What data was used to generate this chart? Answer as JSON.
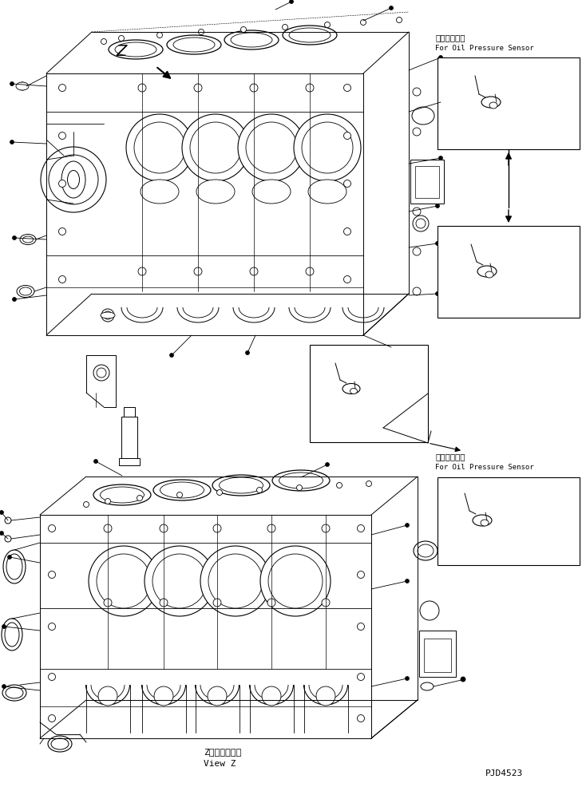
{
  "background_color": "#ffffff",
  "line_color": "#000000",
  "text_color": "#000000",
  "japanese_label1": "油圧センサ用",
  "english_label1": "For Oil Pressure Sensor",
  "japanese_label2": "油圧センサ用",
  "english_label2": "For Oil Pressure Sensor",
  "view_label_jp": "Z　視　　・・",
  "view_label_en": "View Z",
  "part_number": "PJD4523",
  "fig_width": 7.34,
  "fig_height": 9.86,
  "dpi": 100
}
